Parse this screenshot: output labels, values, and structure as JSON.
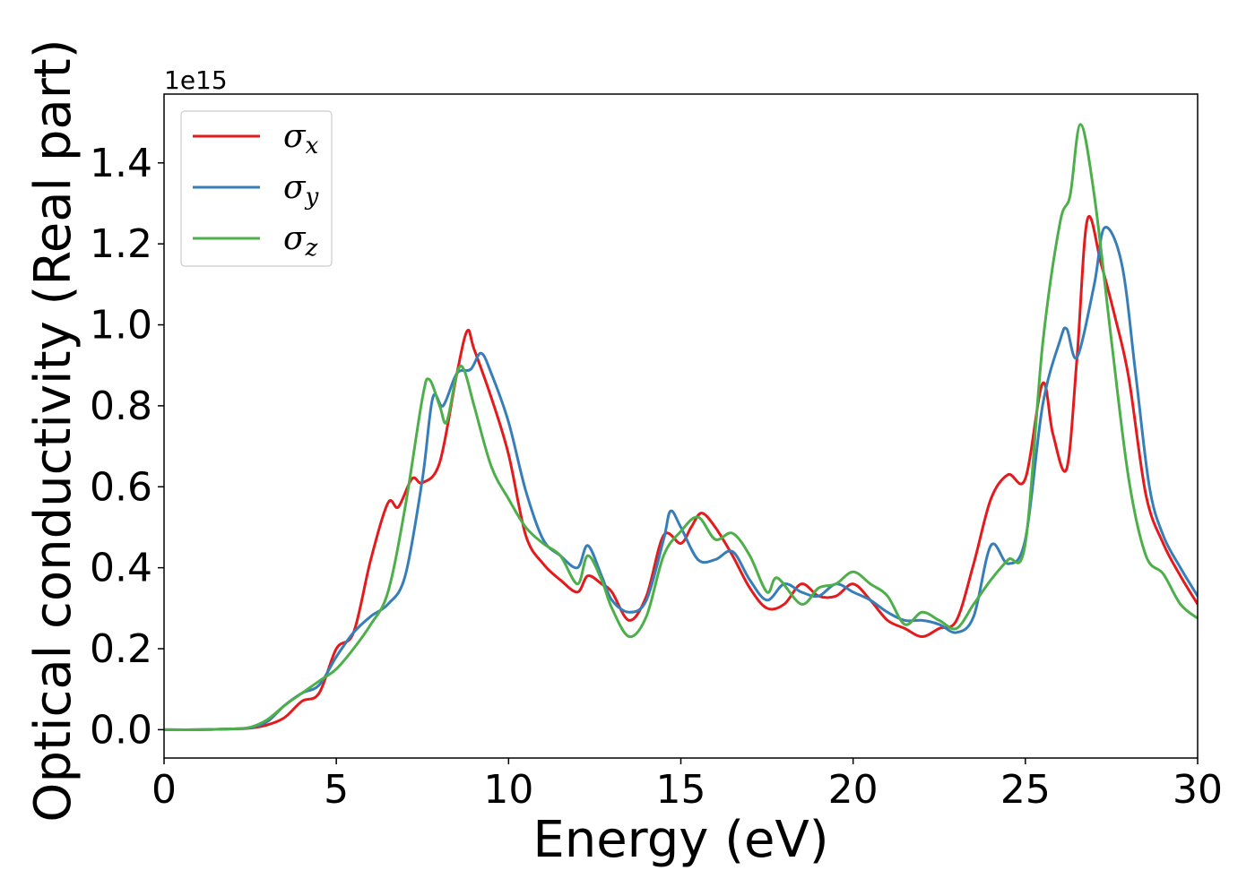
{
  "chart_data": {
    "type": "line",
    "title": "",
    "xlabel": "Energy (eV)",
    "ylabel": "Optical conductivity (Real part)",
    "y_offset_label": "1e15",
    "xlim": [
      0,
      30
    ],
    "ylim": [
      -0.07,
      1.57
    ],
    "x_ticks": [
      0,
      5,
      10,
      15,
      20,
      25,
      30
    ],
    "x_tick_labels": [
      "0",
      "5",
      "10",
      "15",
      "20",
      "25",
      "30"
    ],
    "y_ticks": [
      0.0,
      0.2,
      0.4,
      0.6,
      0.8,
      1.0,
      1.2,
      1.4
    ],
    "y_tick_labels": [
      "0.0",
      "0.2",
      "0.4",
      "0.6",
      "0.8",
      "1.0",
      "1.2",
      "1.4"
    ],
    "grid": false,
    "legend": {
      "position": "top-left"
    },
    "series": [
      {
        "name": "σx",
        "symbol": "σ",
        "sub": "x",
        "color": "#e41a1c",
        "points": [
          [
            0,
            0
          ],
          [
            1,
            0
          ],
          [
            2,
            0.002
          ],
          [
            2.5,
            0.004
          ],
          [
            3,
            0.012
          ],
          [
            3.5,
            0.03
          ],
          [
            4,
            0.07
          ],
          [
            4.5,
            0.09
          ],
          [
            5,
            0.2
          ],
          [
            5.5,
            0.24
          ],
          [
            6,
            0.42
          ],
          [
            6.5,
            0.56
          ],
          [
            6.8,
            0.55
          ],
          [
            7.2,
            0.62
          ],
          [
            7.5,
            0.61
          ],
          [
            8,
            0.66
          ],
          [
            8.5,
            0.88
          ],
          [
            8.8,
            0.985
          ],
          [
            9,
            0.94
          ],
          [
            9.5,
            0.82
          ],
          [
            10,
            0.68
          ],
          [
            10.5,
            0.48
          ],
          [
            11,
            0.41
          ],
          [
            11.5,
            0.37
          ],
          [
            12,
            0.34
          ],
          [
            12.3,
            0.38
          ],
          [
            12.7,
            0.36
          ],
          [
            13,
            0.34
          ],
          [
            13.5,
            0.27
          ],
          [
            14,
            0.33
          ],
          [
            14.5,
            0.48
          ],
          [
            15,
            0.46
          ],
          [
            15.3,
            0.5
          ],
          [
            15.6,
            0.535
          ],
          [
            16,
            0.5
          ],
          [
            16.5,
            0.43
          ],
          [
            17,
            0.35
          ],
          [
            17.5,
            0.3
          ],
          [
            18,
            0.31
          ],
          [
            18.5,
            0.36
          ],
          [
            19,
            0.33
          ],
          [
            19.5,
            0.33
          ],
          [
            20,
            0.36
          ],
          [
            20.5,
            0.32
          ],
          [
            21,
            0.27
          ],
          [
            21.5,
            0.25
          ],
          [
            22,
            0.23
          ],
          [
            22.5,
            0.25
          ],
          [
            23,
            0.27
          ],
          [
            23.5,
            0.41
          ],
          [
            24,
            0.57
          ],
          [
            24.5,
            0.63
          ],
          [
            25,
            0.62
          ],
          [
            25.5,
            0.855
          ],
          [
            25.8,
            0.73
          ],
          [
            26.2,
            0.645
          ],
          [
            26.5,
            0.92
          ],
          [
            26.8,
            1.26
          ],
          [
            27.2,
            1.15
          ],
          [
            27.6,
            1.02
          ],
          [
            28,
            0.87
          ],
          [
            28.5,
            0.58
          ],
          [
            29,
            0.46
          ],
          [
            29.5,
            0.38
          ],
          [
            30,
            0.31
          ]
        ]
      },
      {
        "name": "σy",
        "symbol": "σ",
        "sub": "y",
        "color": "#377eb8",
        "points": [
          [
            0,
            0
          ],
          [
            1,
            0
          ],
          [
            2,
            0.002
          ],
          [
            2.5,
            0.005
          ],
          [
            3,
            0.02
          ],
          [
            3.5,
            0.06
          ],
          [
            4,
            0.09
          ],
          [
            4.5,
            0.11
          ],
          [
            5,
            0.18
          ],
          [
            5.5,
            0.24
          ],
          [
            6,
            0.28
          ],
          [
            6.5,
            0.31
          ],
          [
            7,
            0.38
          ],
          [
            7.5,
            0.62
          ],
          [
            7.8,
            0.82
          ],
          [
            8.1,
            0.8
          ],
          [
            8.5,
            0.88
          ],
          [
            8.9,
            0.89
          ],
          [
            9.2,
            0.93
          ],
          [
            9.5,
            0.88
          ],
          [
            10,
            0.76
          ],
          [
            10.5,
            0.59
          ],
          [
            11,
            0.47
          ],
          [
            11.5,
            0.43
          ],
          [
            12,
            0.4
          ],
          [
            12.3,
            0.455
          ],
          [
            12.7,
            0.38
          ],
          [
            13,
            0.32
          ],
          [
            13.5,
            0.29
          ],
          [
            14,
            0.32
          ],
          [
            14.5,
            0.47
          ],
          [
            14.7,
            0.54
          ],
          [
            15,
            0.5
          ],
          [
            15.5,
            0.42
          ],
          [
            16,
            0.42
          ],
          [
            16.5,
            0.44
          ],
          [
            17,
            0.37
          ],
          [
            17.5,
            0.32
          ],
          [
            18,
            0.36
          ],
          [
            18.5,
            0.34
          ],
          [
            19,
            0.33
          ],
          [
            19.5,
            0.36
          ],
          [
            20,
            0.34
          ],
          [
            20.5,
            0.32
          ],
          [
            21,
            0.29
          ],
          [
            21.5,
            0.27
          ],
          [
            22,
            0.27
          ],
          [
            22.5,
            0.26
          ],
          [
            23,
            0.24
          ],
          [
            23.5,
            0.28
          ],
          [
            24,
            0.455
          ],
          [
            24.5,
            0.41
          ],
          [
            25,
            0.47
          ],
          [
            25.5,
            0.8
          ],
          [
            26,
            0.96
          ],
          [
            26.2,
            0.99
          ],
          [
            26.5,
            0.92
          ],
          [
            27,
            1.1
          ],
          [
            27.3,
            1.24
          ],
          [
            27.8,
            1.15
          ],
          [
            28.2,
            0.88
          ],
          [
            28.6,
            0.6
          ],
          [
            29,
            0.48
          ],
          [
            29.5,
            0.4
          ],
          [
            30,
            0.33
          ]
        ]
      },
      {
        "name": "σz",
        "symbol": "σ",
        "sub": "z",
        "color": "#4daf4a",
        "points": [
          [
            0,
            0
          ],
          [
            1,
            0
          ],
          [
            2,
            0.002
          ],
          [
            2.5,
            0.006
          ],
          [
            3,
            0.025
          ],
          [
            3.5,
            0.06
          ],
          [
            4,
            0.09
          ],
          [
            4.5,
            0.12
          ],
          [
            5,
            0.15
          ],
          [
            5.5,
            0.2
          ],
          [
            6,
            0.26
          ],
          [
            6.5,
            0.34
          ],
          [
            7,
            0.55
          ],
          [
            7.5,
            0.82
          ],
          [
            7.7,
            0.865
          ],
          [
            8,
            0.8
          ],
          [
            8.2,
            0.76
          ],
          [
            8.5,
            0.88
          ],
          [
            8.7,
            0.89
          ],
          [
            9,
            0.8
          ],
          [
            9.5,
            0.65
          ],
          [
            10,
            0.57
          ],
          [
            10.5,
            0.5
          ],
          [
            11,
            0.46
          ],
          [
            11.5,
            0.43
          ],
          [
            12,
            0.36
          ],
          [
            12.3,
            0.43
          ],
          [
            12.7,
            0.37
          ],
          [
            13,
            0.3
          ],
          [
            13.5,
            0.23
          ],
          [
            14,
            0.28
          ],
          [
            14.5,
            0.43
          ],
          [
            15,
            0.49
          ],
          [
            15.5,
            0.525
          ],
          [
            16,
            0.47
          ],
          [
            16.5,
            0.485
          ],
          [
            17,
            0.43
          ],
          [
            17.5,
            0.34
          ],
          [
            17.8,
            0.375
          ],
          [
            18.5,
            0.31
          ],
          [
            19,
            0.35
          ],
          [
            19.5,
            0.36
          ],
          [
            20,
            0.39
          ],
          [
            20.5,
            0.36
          ],
          [
            21,
            0.33
          ],
          [
            21.5,
            0.26
          ],
          [
            22,
            0.29
          ],
          [
            22.5,
            0.27
          ],
          [
            23,
            0.25
          ],
          [
            23.5,
            0.31
          ],
          [
            24,
            0.37
          ],
          [
            24.5,
            0.42
          ],
          [
            25,
            0.46
          ],
          [
            25.5,
            0.95
          ],
          [
            26,
            1.25
          ],
          [
            26.3,
            1.32
          ],
          [
            26.6,
            1.495
          ],
          [
            27,
            1.32
          ],
          [
            27.5,
            0.96
          ],
          [
            28,
            0.62
          ],
          [
            28.5,
            0.43
          ],
          [
            29,
            0.385
          ],
          [
            29.5,
            0.31
          ],
          [
            30,
            0.275
          ]
        ]
      }
    ]
  }
}
